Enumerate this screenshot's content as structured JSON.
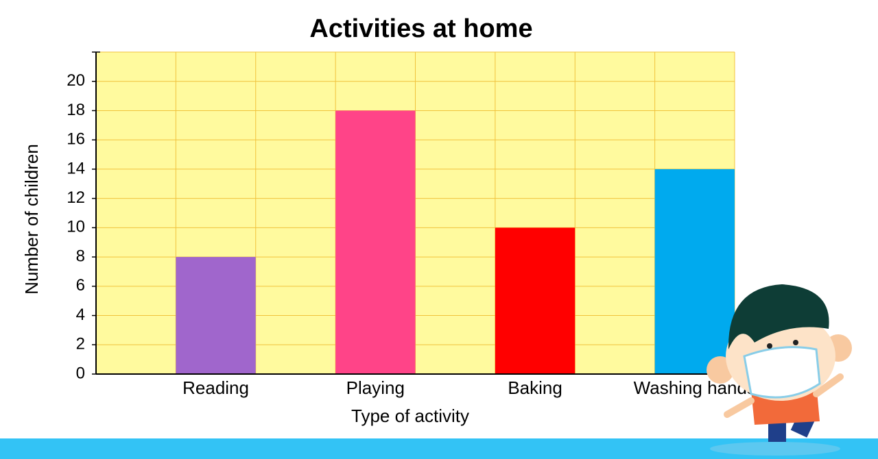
{
  "chart_data": {
    "type": "bar",
    "title": "Activities at home",
    "x_label": "Type of activity",
    "y_label": "Number of children",
    "categories": [
      "Reading",
      "Playing",
      "Baking",
      "Washing hands"
    ],
    "values": [
      8,
      18,
      10,
      14
    ],
    "colors": [
      "#a066cc",
      "#ff4488",
      "#ff0000",
      "#00aaee"
    ],
    "ylim": [
      0,
      22
    ],
    "yticks": [
      0,
      2,
      4,
      6,
      8,
      10,
      12,
      14,
      16,
      18,
      20
    ],
    "grid": true
  }
}
